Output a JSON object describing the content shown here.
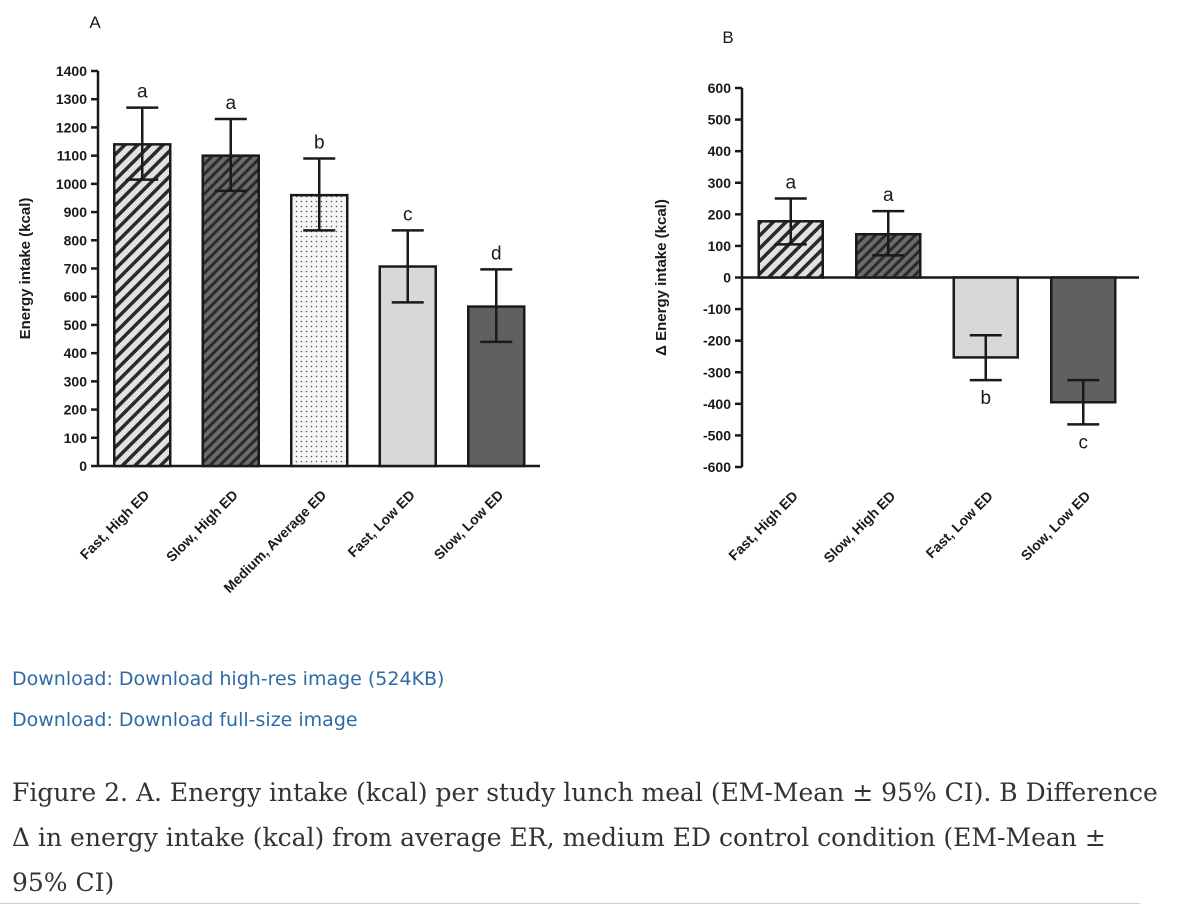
{
  "chart_data": [
    {
      "type": "bar",
      "panel_label": "A",
      "ylabel": "Energy intake (kcal)",
      "xlabel": "",
      "ylim": [
        0,
        1400
      ],
      "yticks": [
        0,
        100,
        200,
        300,
        400,
        500,
        600,
        700,
        800,
        900,
        1000,
        1100,
        1200,
        1300,
        1400
      ],
      "categories": [
        "Fast, High ED",
        "Slow, High ED",
        "Medium, Average ED",
        "Fast, Low ED",
        "Slow, Low ED"
      ],
      "values": [
        1140,
        1100,
        960,
        707,
        565
      ],
      "ci_low": [
        1015,
        975,
        835,
        580,
        440
      ],
      "ci_high": [
        1270,
        1230,
        1090,
        835,
        697
      ],
      "letters": [
        "a",
        "a",
        "b",
        "c",
        "d"
      ],
      "patterns": [
        "hatch-light",
        "hatch-dark",
        "dots",
        "solid-light",
        "solid-dark"
      ]
    },
    {
      "type": "bar",
      "panel_label": "B",
      "ylabel": "Δ Energy intake (kcal)",
      "xlabel": "",
      "ylim": [
        -600,
        600
      ],
      "yticks": [
        -600,
        -500,
        -400,
        -300,
        -200,
        -100,
        0,
        100,
        200,
        300,
        400,
        500,
        600
      ],
      "categories": [
        "Fast, High ED",
        "Slow, High ED",
        "Fast, Low ED",
        "Slow, Low ED"
      ],
      "values": [
        178,
        137,
        -253,
        -395
      ],
      "ci_low": [
        105,
        70,
        -325,
        -465
      ],
      "ci_high": [
        250,
        210,
        -183,
        -325
      ],
      "letters": [
        "a",
        "a",
        "b",
        "c"
      ],
      "patterns": [
        "hatch-light",
        "hatch-dark",
        "solid-light",
        "solid-dark"
      ]
    }
  ],
  "links": [
    "Download: Download high-res image (524KB)",
    "Download: Download full-size image"
  ],
  "caption": "Figure 2. A. Energy intake (kcal) per study lunch meal (EM-Mean ± 95% CI). B Difference Δ in energy intake (kcal) from average ER, medium ED control condition (EM-Mean ± 95% CI)",
  "colors": {
    "ink": "#1a1a1a",
    "hatch_light_bg": "#e2e2e2",
    "hatch_dark_bg": "#6b6b6b",
    "dots_bg": "#f6f6f6",
    "solid_light": "#d8d8d8",
    "solid_dark": "#606060",
    "link": "#2e6aa6",
    "caption": "#333333"
  }
}
